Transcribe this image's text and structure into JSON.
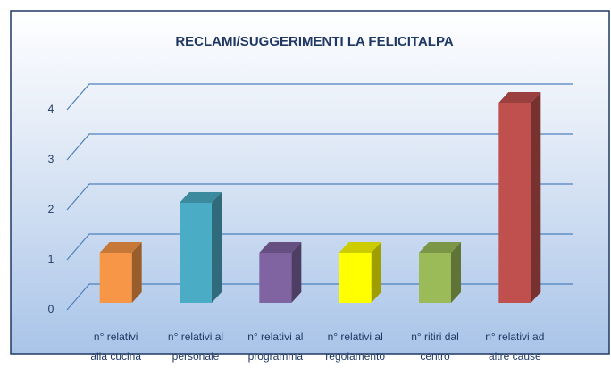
{
  "chart_data": {
    "type": "bar3d",
    "title": "RECLAMI/SUGGERIMENTI  LA FELICITALPA",
    "categories": [
      "n° relativi\nalla cucina",
      "n° relativi al\npersonale",
      "n° relativi al\nprogramma",
      "n° relativi al\nregolamento",
      "n° ritiri dal\ncentro",
      "n° relativi ad\naltre cause"
    ],
    "values": [
      1,
      2,
      1,
      1,
      1,
      4
    ],
    "colors": [
      "#f79646",
      "#4bacc6",
      "#8064a2",
      "#ffff00",
      "#9bbb59",
      "#c0504d"
    ],
    "ylim": [
      0,
      4
    ],
    "yticks": [
      0,
      1,
      2,
      3,
      4
    ],
    "grid": true
  }
}
